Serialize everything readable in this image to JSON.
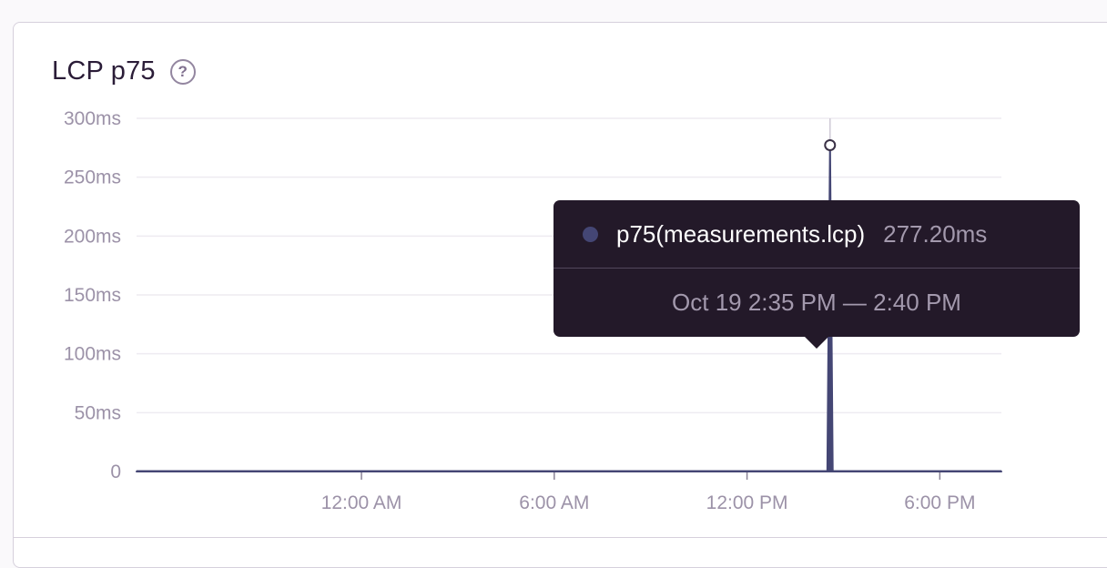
{
  "panel": {
    "title": "LCP p75",
    "help_icon": "question-circle-icon",
    "help_glyph": "?"
  },
  "chart_data": {
    "type": "area",
    "x_ticks": [
      "12:00 AM",
      "6:00 AM",
      "12:00 PM",
      "6:00 PM"
    ],
    "y_ticks": [
      "0",
      "50ms",
      "100ms",
      "150ms",
      "200ms",
      "250ms",
      "300ms"
    ],
    "ylim": [
      0,
      300
    ],
    "y_unit": "ms",
    "grid": true,
    "series": [
      {
        "name": "p75(measurements.lcp)",
        "color": "#444674",
        "points": [
          {
            "x": "Oct 18 5:00 PM",
            "y": 0
          },
          {
            "x": "Oct 19 2:30 PM",
            "y": 0
          },
          {
            "x": "Oct 19 2:35 PM",
            "y": 277.2
          },
          {
            "x": "Oct 19 2:40 PM",
            "y": 0
          },
          {
            "x": "Oct 19 7:55 PM",
            "y": 0
          }
        ]
      }
    ],
    "tooltip": {
      "series": "p75(measurements.lcp)",
      "value": "277.20ms",
      "time_range": "Oct 19 2:35 PM — 2:40 PM"
    }
  }
}
